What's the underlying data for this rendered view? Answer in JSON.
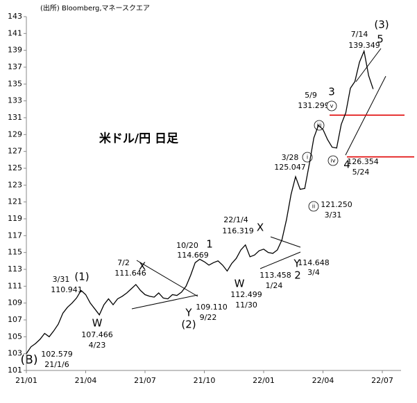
{
  "chart_data": {
    "type": "line",
    "title": "米ドル/円 日足",
    "source": "(出所) Bloomberg,マネースクエア",
    "xticks": [
      "21/01",
      "21/04",
      "21/07",
      "21/10",
      "22/01",
      "22/04",
      "22/07"
    ],
    "ylim": [
      101,
      143
    ],
    "yticks": [
      101,
      103,
      105,
      107,
      109,
      111,
      113,
      115,
      117,
      119,
      121,
      123,
      125,
      127,
      129,
      131,
      133,
      135,
      137,
      139,
      141,
      143
    ],
    "series": [
      {
        "color": "#000000",
        "values": [
          103.0,
          103.8,
          104.2,
          104.7,
          105.4,
          105.0,
          105.7,
          106.5,
          107.8,
          108.5,
          109.0,
          109.6,
          110.5,
          110.0,
          109.0,
          108.3,
          107.6,
          108.8,
          109.5,
          108.8,
          109.5,
          109.8,
          110.2,
          110.7,
          111.2,
          110.5,
          110.0,
          109.8,
          109.7,
          110.2,
          109.6,
          109.5,
          110.0,
          109.9,
          110.3,
          111.0,
          112.3,
          113.8,
          114.2,
          113.9,
          113.5,
          113.8,
          114.0,
          113.5,
          112.8,
          113.7,
          114.3,
          115.3,
          115.9,
          114.5,
          114.7,
          115.2,
          115.4,
          115.0,
          114.9,
          115.3,
          116.5,
          118.9,
          121.9,
          124.0,
          122.5,
          122.6,
          125.5,
          128.6,
          130.1,
          129.6,
          128.4,
          127.5,
          127.4,
          130.2,
          131.6,
          134.5,
          135.3,
          137.6,
          138.9,
          136.0,
          134.4
        ]
      }
    ],
    "hlines": [
      131.299,
      126.354
    ],
    "hline_color": "#e00000",
    "annotations": [
      "(B)",
      "102.579",
      "21/1/6",
      "3/31",
      "110.941",
      "(1)",
      "W",
      "107.466",
      "4/23",
      "7/2",
      "111.646",
      "X",
      "Y",
      "(2)",
      "109.110",
      "9/22",
      "10/20",
      "114.669",
      "1",
      "22/1/4",
      "116.319",
      "X",
      "W",
      "112.499",
      "11/30",
      "113.458",
      "1/24",
      "Y",
      "2",
      "114.648",
      "3/4",
      "3/28",
      "125.047",
      "121.250",
      "3/31",
      "5/9",
      "131.299",
      "3",
      "4",
      "126.354",
      "5/24",
      "7/14",
      "139.349",
      "5",
      "(3)",
      "i",
      "ii",
      "iii",
      "iv",
      "v"
    ]
  }
}
